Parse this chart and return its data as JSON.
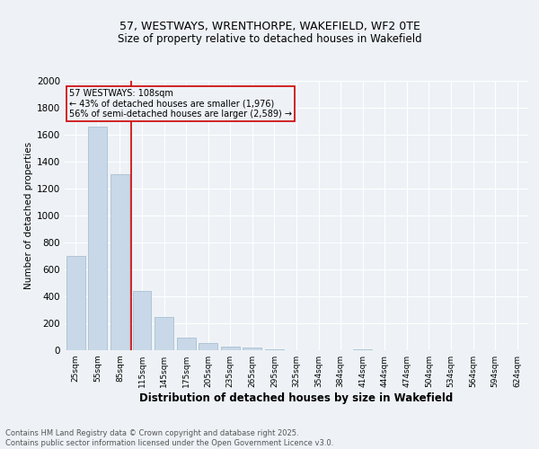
{
  "title_line1": "57, WESTWAYS, WRENTHORPE, WAKEFIELD, WF2 0TE",
  "title_line2": "Size of property relative to detached houses in Wakefield",
  "xlabel": "Distribution of detached houses by size in Wakefield",
  "ylabel": "Number of detached properties",
  "bar_color": "#c8d8e8",
  "bar_edge_color": "#a0b8cc",
  "background_color": "#eef2f6",
  "grid_color": "#ffffff",
  "annotation_box_color": "#cc0000",
  "vline_color": "#cc0000",
  "categories": [
    "25sqm",
    "55sqm",
    "85sqm",
    "115sqm",
    "145sqm",
    "175sqm",
    "205sqm",
    "235sqm",
    "265sqm",
    "295sqm",
    "325sqm",
    "354sqm",
    "384sqm",
    "414sqm",
    "444sqm",
    "474sqm",
    "504sqm",
    "534sqm",
    "564sqm",
    "594sqm",
    "624sqm"
  ],
  "values": [
    700,
    1660,
    1310,
    440,
    250,
    95,
    55,
    30,
    18,
    5,
    0,
    0,
    0,
    10,
    0,
    0,
    0,
    0,
    0,
    0,
    0
  ],
  "vline_position": 2.5,
  "annotation_text": "57 WESTWAYS: 108sqm\n← 43% of detached houses are smaller (1,976)\n56% of semi-detached houses are larger (2,589) →",
  "ylim": [
    0,
    2000
  ],
  "yticks": [
    0,
    200,
    400,
    600,
    800,
    1000,
    1200,
    1400,
    1600,
    1800,
    2000
  ],
  "footnote": "Contains HM Land Registry data © Crown copyright and database right 2025.\nContains public sector information licensed under the Open Government Licence v3.0."
}
